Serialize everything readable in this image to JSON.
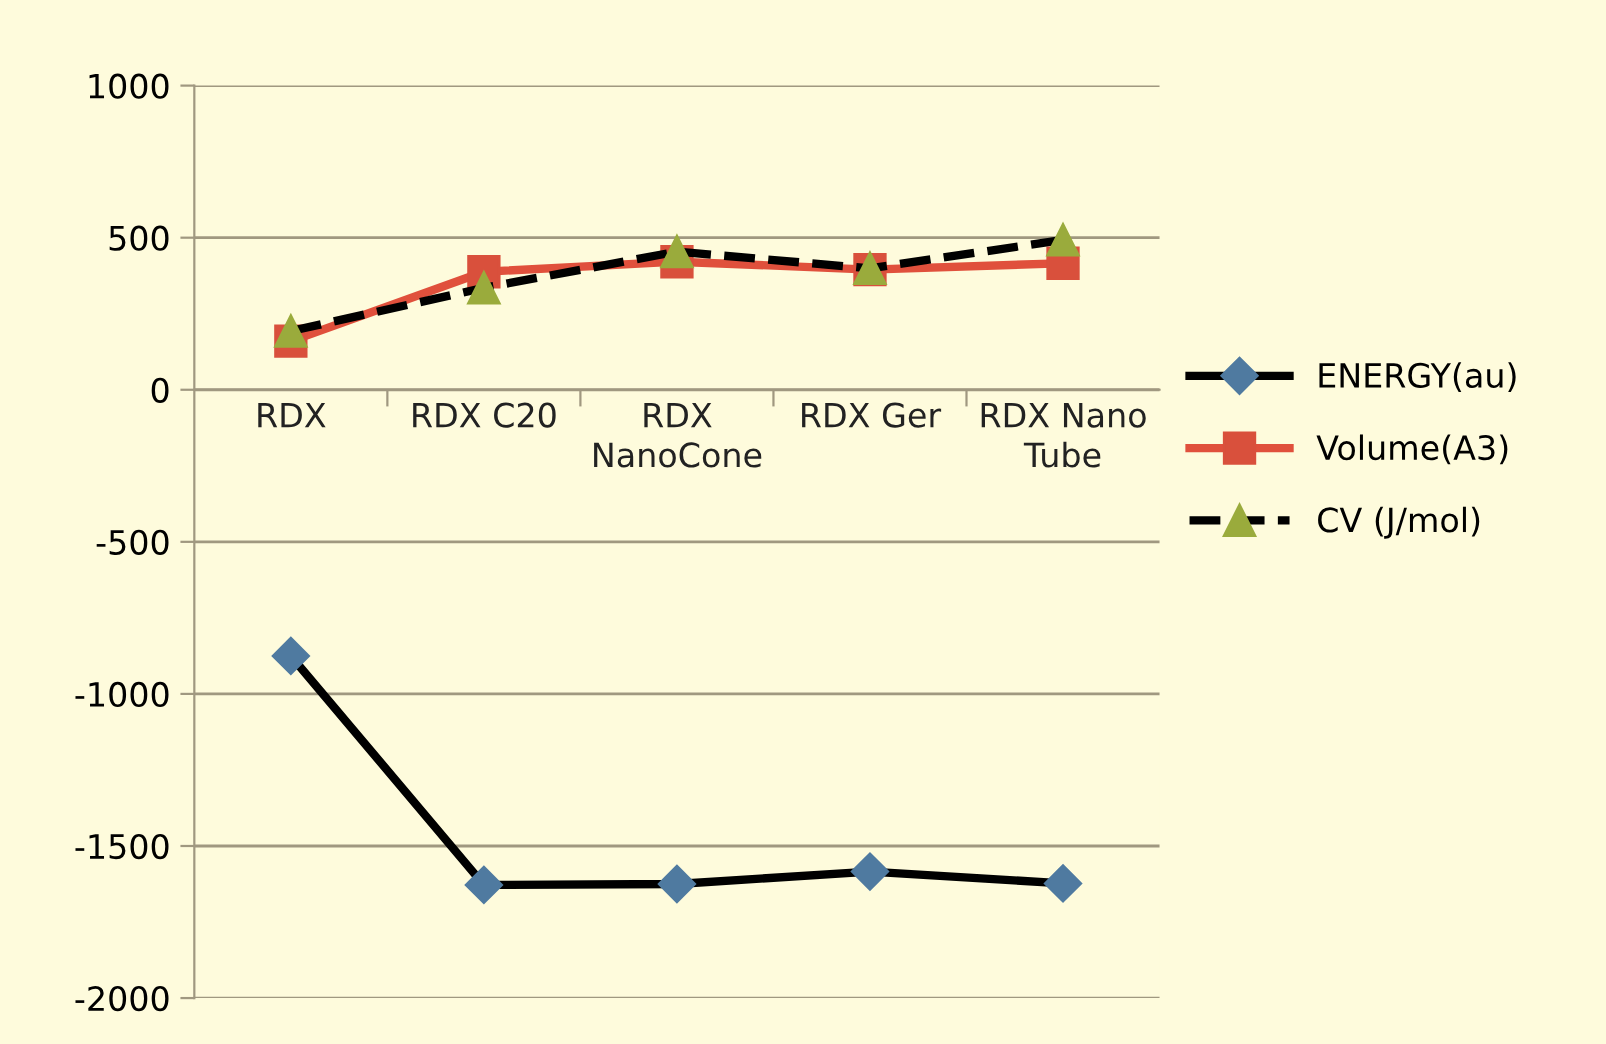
{
  "chart_data": {
    "type": "line",
    "categories": [
      "RDX",
      "RDX C20",
      "RDX\nNanoCone",
      "RDX Ger",
      "RDX Nano\nTube"
    ],
    "series": [
      {
        "name": "ENERGY(au)",
        "color": "#000000",
        "marker": "diamond",
        "line_style": "solid",
        "values": [
          -875,
          -1628,
          -1625,
          -1584,
          -1623
        ]
      },
      {
        "name": "Volume(A3)",
        "color": "#e0503c",
        "marker": "square",
        "line_style": "solid",
        "values": [
          160,
          388,
          421,
          395,
          416
        ]
      },
      {
        "name": "CV (J/mol)",
        "color": "#000000",
        "marker": "triangle",
        "line_style": "dashed",
        "values": [
          193,
          335,
          454,
          399,
          493
        ]
      }
    ],
    "ylim": [
      -2000,
      1000
    ],
    "yticks": [
      -2000,
      -1500,
      -1000,
      -500,
      0,
      500,
      1000
    ],
    "grid": "y",
    "legend": "right"
  }
}
